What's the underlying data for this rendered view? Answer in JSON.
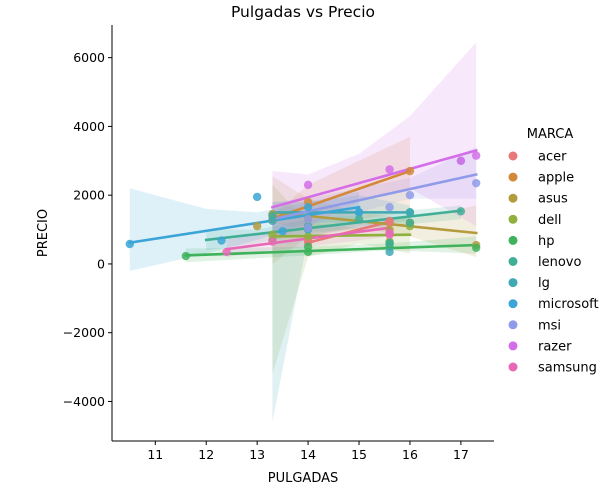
{
  "chart_data": {
    "type": "scatter",
    "title": "Pulgadas vs Precio",
    "xlabel": "PULGADAS",
    "ylabel": "PRECIO",
    "xlim": [
      10.15,
      17.65
    ],
    "ylim": [
      -5150,
      6950
    ],
    "x_ticks": [
      11,
      12,
      13,
      14,
      15,
      16,
      17
    ],
    "y_ticks": [
      -4000,
      -2000,
      0,
      2000,
      4000,
      6000
    ],
    "legend_title": "MARCA",
    "legend_position": "right",
    "series": [
      {
        "name": "acer",
        "color": "#e8797a",
        "points": [
          [
            14.0,
            620
          ],
          [
            15.6,
            1250
          ],
          [
            15.6,
            1200
          ],
          [
            14.0,
            700
          ]
        ],
        "fit": [
          [
            14.0,
            620
          ],
          [
            15.6,
            1230
          ]
        ],
        "band": null
      },
      {
        "name": "apple",
        "color": "#d2893a",
        "points": [
          [
            13.3,
            1300
          ],
          [
            14.0,
            1800
          ],
          [
            16.0,
            2700
          ]
        ],
        "fit": [
          [
            13.3,
            1320
          ],
          [
            16.0,
            2700
          ]
        ],
        "band": [
          [
            13.3,
            1400,
            1200
          ],
          [
            14.0,
            2300,
            1000
          ],
          [
            15.0,
            3000,
            1300
          ],
          [
            16.0,
            3700,
            1500
          ]
        ]
      },
      {
        "name": "asus",
        "color": "#b39b3e",
        "points": [
          [
            13.0,
            1100
          ],
          [
            13.3,
            1450
          ],
          [
            14.0,
            1300
          ],
          [
            15.6,
            1000
          ],
          [
            17.3,
            550
          ],
          [
            16.0,
            1200
          ]
        ],
        "fit": [
          [
            13.3,
            1500
          ],
          [
            17.3,
            900
          ]
        ],
        "band": [
          [
            13.3,
            2550,
            0
          ],
          [
            14.0,
            1900,
            800
          ],
          [
            15.0,
            1500,
            1050
          ],
          [
            16.0,
            1300,
            800
          ],
          [
            17.3,
            1700,
            200
          ]
        ]
      },
      {
        "name": "dell",
        "color": "#8fb03d",
        "points": [
          [
            13.3,
            850
          ],
          [
            14.0,
            800
          ],
          [
            15.6,
            650
          ],
          [
            16.0,
            1100
          ],
          [
            13.3,
            700
          ]
        ],
        "fit": [
          [
            13.3,
            800
          ],
          [
            16.0,
            850
          ]
        ],
        "band": [
          [
            13.3,
            2300,
            -3200
          ],
          [
            14.0,
            1200,
            200
          ],
          [
            15.0,
            1050,
            600
          ],
          [
            16.0,
            1400,
            300
          ]
        ]
      },
      {
        "name": "hp",
        "color": "#3fb35c",
        "points": [
          [
            11.6,
            230
          ],
          [
            14.0,
            350
          ],
          [
            15.6,
            500
          ],
          [
            17.3,
            470
          ],
          [
            15.6,
            600
          ],
          [
            14.0,
            500
          ]
        ],
        "fit": [
          [
            11.6,
            250
          ],
          [
            17.3,
            550
          ]
        ],
        "band": [
          [
            11.6,
            450,
            50
          ],
          [
            14.0,
            500,
            250
          ],
          [
            15.6,
            600,
            400
          ],
          [
            17.3,
            800,
            300
          ]
        ]
      },
      {
        "name": "lenovo",
        "color": "#41ae96",
        "points": [
          [
            13.3,
            1400
          ],
          [
            14.0,
            1100
          ],
          [
            15.6,
            600
          ],
          [
            16.0,
            1200
          ],
          [
            17.0,
            1530
          ],
          [
            15.0,
            1300
          ],
          [
            16.0,
            1500
          ]
        ],
        "fit": [
          [
            12.0,
            700
          ],
          [
            17.0,
            1550
          ]
        ],
        "band": [
          [
            12.0,
            1000,
            400
          ],
          [
            13.0,
            1000,
            600
          ],
          [
            14.0,
            1300,
            900
          ],
          [
            15.6,
            1500,
            1100
          ],
          [
            17.0,
            1700,
            1300
          ]
        ]
      },
      {
        "name": "lg",
        "color": "#3fa9b4",
        "points": [
          [
            13.3,
            1250
          ],
          [
            14.0,
            1000
          ],
          [
            15.6,
            350
          ],
          [
            16.0,
            1500
          ],
          [
            15.0,
            1500
          ]
        ],
        "fit": [
          [
            13.3,
            1500
          ],
          [
            16.0,
            1500
          ]
        ],
        "band": [
          [
            13.3,
            1800,
            -4600
          ],
          [
            14.0,
            1800,
            800
          ],
          [
            15.0,
            2000,
            1100
          ],
          [
            16.0,
            1700,
            1250
          ]
        ]
      },
      {
        "name": "microsoft",
        "color": "#3aa5d6",
        "points": [
          [
            10.5,
            580
          ],
          [
            12.3,
            680
          ],
          [
            13.0,
            1950
          ],
          [
            13.5,
            950
          ],
          [
            14.0,
            1650
          ],
          [
            15.0,
            1500
          ]
        ],
        "fit": [
          [
            10.5,
            620
          ],
          [
            15.0,
            1650
          ]
        ],
        "band": [
          [
            10.5,
            2200,
            -200
          ],
          [
            12.0,
            1600,
            300
          ],
          [
            13.0,
            1500,
            700
          ],
          [
            14.0,
            1800,
            1200
          ],
          [
            15.0,
            2100,
            1200
          ]
        ]
      },
      {
        "name": "msi",
        "color": "#8f9be8",
        "points": [
          [
            14.0,
            1050
          ],
          [
            15.6,
            1650
          ],
          [
            16.0,
            2000
          ],
          [
            17.3,
            2350
          ],
          [
            17.0,
            3000
          ],
          [
            14.0,
            1300
          ]
        ],
        "fit": [
          [
            13.3,
            1300
          ],
          [
            17.3,
            2600
          ]
        ],
        "band": [
          [
            13.3,
            1800,
            800
          ],
          [
            14.0,
            1900,
            1100
          ],
          [
            15.0,
            2200,
            1500
          ],
          [
            16.0,
            2500,
            1900
          ],
          [
            17.3,
            3400,
            1900
          ]
        ]
      },
      {
        "name": "razer",
        "color": "#d46ee8",
        "points": [
          [
            14.0,
            2300
          ],
          [
            15.6,
            2750
          ],
          [
            17.3,
            3150
          ],
          [
            17.0,
            3000
          ]
        ],
        "fit": [
          [
            13.3,
            1650
          ],
          [
            17.3,
            3300
          ]
        ],
        "band": [
          [
            13.3,
            2700,
            700
          ],
          [
            14.0,
            2600,
            1100
          ],
          [
            15.0,
            3200,
            1800
          ],
          [
            16.0,
            4300,
            2200
          ],
          [
            17.3,
            6450,
            1100
          ]
        ]
      },
      {
        "name": "samsung",
        "color": "#e868b8",
        "points": [
          [
            12.4,
            350
          ],
          [
            13.3,
            650
          ],
          [
            15.6,
            850
          ],
          [
            15.6,
            900
          ]
        ],
        "fit": [
          [
            12.4,
            430
          ],
          [
            15.6,
            1050
          ]
        ],
        "band": [
          [
            12.4,
            700,
            200
          ],
          [
            13.3,
            900,
            400
          ],
          [
            14.0,
            1000,
            500
          ],
          [
            15.6,
            1300,
            800
          ]
        ]
      }
    ]
  }
}
